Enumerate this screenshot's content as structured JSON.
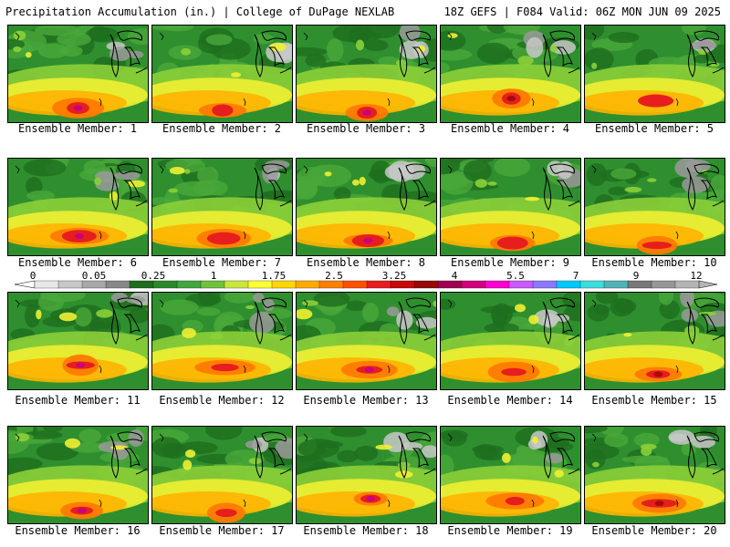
{
  "header": {
    "left": "Precipitation Accumulation (in.) | College of DuPage NEXLAB",
    "right": "18Z GEFS | F084 Valid: 06Z MON JUN 09 2025"
  },
  "colorbar": {
    "tick_labels": [
      "0",
      "0.05",
      "0.25",
      "1",
      "1.75",
      "2.5",
      "3.25",
      "4",
      "5.5",
      "7",
      "9",
      "12"
    ],
    "colors": [
      "#e8e8e8",
      "#c8c8c8",
      "#a8a8a8",
      "#888888",
      "#1e6e1e",
      "#2a8a2a",
      "#3fa83f",
      "#6fc23a",
      "#c8e63c",
      "#ffff32",
      "#ffd700",
      "#ffaa00",
      "#ff8000",
      "#ff5000",
      "#e61e1e",
      "#c80a0a",
      "#960a0a",
      "#a00050",
      "#d2007d",
      "#ff00d2",
      "#c85aff",
      "#8c78ff",
      "#00c8ff",
      "#3cdcdc",
      "#50b4b4",
      "#787878",
      "#969696",
      "#b4b4b4"
    ]
  },
  "panels": [
    {
      "label": "Ensemble Member: 1"
    },
    {
      "label": "Ensemble Member: 2"
    },
    {
      "label": "Ensemble Member: 3"
    },
    {
      "label": "Ensemble Member: 4"
    },
    {
      "label": "Ensemble Member: 5"
    },
    {
      "label": "Ensemble Member: 6"
    },
    {
      "label": "Ensemble Member: 7"
    },
    {
      "label": "Ensemble Member: 8"
    },
    {
      "label": "Ensemble Member: 9"
    },
    {
      "label": "Ensemble Member: 10"
    },
    {
      "label": "Ensemble Member: 11"
    },
    {
      "label": "Ensemble Member: 12"
    },
    {
      "label": "Ensemble Member: 13"
    },
    {
      "label": "Ensemble Member: 14"
    },
    {
      "label": "Ensemble Member: 15"
    },
    {
      "label": "Ensemble Member: 16"
    },
    {
      "label": "Ensemble Member: 17"
    },
    {
      "label": "Ensemble Member: 18"
    },
    {
      "label": "Ensemble Member: 19"
    },
    {
      "label": "Ensemble Member: 20"
    }
  ]
}
